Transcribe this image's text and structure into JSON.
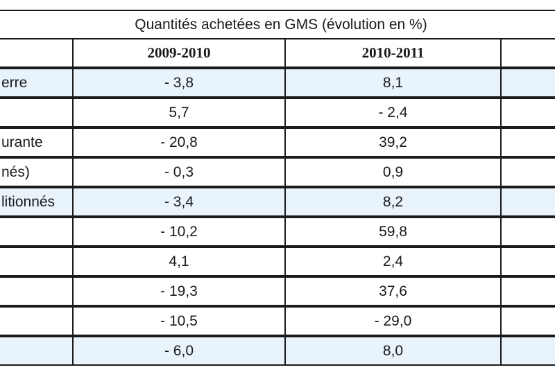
{
  "table": {
    "title": "Quantités achetées en GMS (évolution en %)",
    "columns": [
      "",
      "2009-2010",
      "2010-2011",
      ""
    ],
    "rows": [
      {
        "label": "erre",
        "v2009_2010": "- 3,8",
        "v2010_2011": "8,1",
        "highlight": true
      },
      {
        "label": "",
        "v2009_2010": "5,7",
        "v2010_2011": "- 2,4",
        "highlight": false
      },
      {
        "label": "urante",
        "v2009_2010": "- 20,8",
        "v2010_2011": "39,2",
        "highlight": false
      },
      {
        "label": "nés)",
        "v2009_2010": "- 0,3",
        "v2010_2011": "0,9",
        "highlight": false
      },
      {
        "label": "litionnés",
        "v2009_2010": "- 3,4",
        "v2010_2011": "8,2",
        "highlight": true
      },
      {
        "label": "",
        "v2009_2010": "- 10,2",
        "v2010_2011": "59,8",
        "highlight": false
      },
      {
        "label": "",
        "v2009_2010": "4,1",
        "v2010_2011": "2,4",
        "highlight": false
      },
      {
        "label": "",
        "v2009_2010": "- 19,3",
        "v2010_2011": "37,6",
        "highlight": false
      },
      {
        "label": "",
        "v2009_2010": "- 10,5",
        "v2010_2011": "- 29,0",
        "highlight": false
      },
      {
        "label": "",
        "v2009_2010": "- 6,0",
        "v2010_2011": "8,0",
        "highlight": true
      }
    ]
  },
  "colors": {
    "highlight_row": "#e9f3fb",
    "border": "#1a1a1a"
  }
}
